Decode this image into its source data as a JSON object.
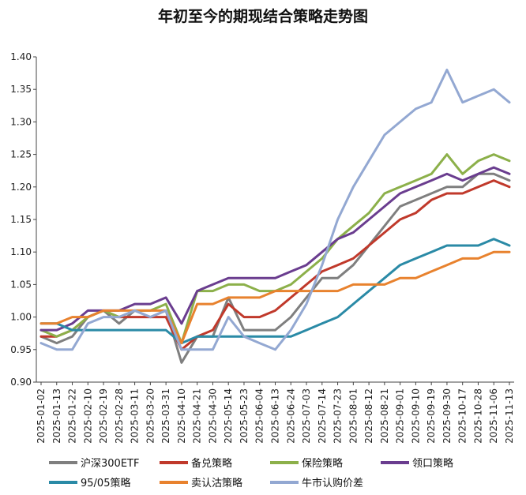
{
  "chart_data": {
    "type": "line",
    "title": "年初至今的期现结合策略走势图",
    "xlabel": "",
    "ylabel": "",
    "ylim": [
      0.9,
      1.4
    ],
    "yticks": [
      "0.90",
      "0.95",
      "1.00",
      "1.05",
      "1.10",
      "1.15",
      "1.20",
      "1.25",
      "1.30",
      "1.35",
      "1.40"
    ],
    "x": [
      "2025-01-02",
      "2025-01-13",
      "2025-01-22",
      "2025-02-10",
      "2025-02-19",
      "2025-02-28",
      "2025-03-11",
      "2025-03-20",
      "2025-03-31",
      "2025-04-10",
      "2025-04-21",
      "2025-04-30",
      "2025-05-14",
      "2025-05-23",
      "2025-06-04",
      "2025-06-13",
      "2025-06-24",
      "2025-07-03",
      "2025-07-14",
      "2025-07-23",
      "2025-08-01",
      "2025-08-12",
      "2025-08-21",
      "2025-09-01",
      "2025-09-10",
      "2025-09-19",
      "2025-09-30",
      "2025-10-17",
      "2025-10-28",
      "2025-11-06",
      "2025-11-13"
    ],
    "legend_position": "bottom",
    "series": [
      {
        "name": "沪深300ETF",
        "color": "#7f7f7f",
        "values": [
          0.97,
          0.96,
          0.97,
          1.0,
          1.01,
          0.99,
          1.01,
          1.0,
          1.01,
          0.93,
          0.97,
          0.97,
          1.03,
          0.98,
          0.98,
          0.98,
          1.0,
          1.03,
          1.06,
          1.06,
          1.08,
          1.11,
          1.14,
          1.17,
          1.18,
          1.19,
          1.2,
          1.2,
          1.22,
          1.22,
          1.21
        ]
      },
      {
        "name": "备兑策略",
        "color": "#c0392b",
        "values": [
          0.97,
          0.97,
          0.98,
          1.0,
          1.01,
          1.0,
          1.0,
          1.0,
          1.0,
          0.95,
          0.97,
          0.98,
          1.02,
          1.0,
          1.0,
          1.01,
          1.03,
          1.05,
          1.07,
          1.08,
          1.09,
          1.11,
          1.13,
          1.15,
          1.16,
          1.18,
          1.19,
          1.19,
          1.2,
          1.21,
          1.2
        ]
      },
      {
        "name": "保险策略",
        "color": "#8cb04a",
        "values": [
          0.98,
          0.97,
          0.98,
          1.0,
          1.01,
          1.0,
          1.01,
          1.01,
          1.02,
          0.96,
          1.04,
          1.04,
          1.05,
          1.05,
          1.04,
          1.04,
          1.05,
          1.07,
          1.09,
          1.12,
          1.14,
          1.16,
          1.19,
          1.2,
          1.21,
          1.22,
          1.25,
          1.22,
          1.24,
          1.25,
          1.24
        ]
      },
      {
        "name": "领口策略",
        "color": "#6a3d8f",
        "values": [
          0.98,
          0.98,
          0.99,
          1.01,
          1.01,
          1.01,
          1.02,
          1.02,
          1.03,
          0.99,
          1.04,
          1.05,
          1.06,
          1.06,
          1.06,
          1.06,
          1.07,
          1.08,
          1.1,
          1.12,
          1.13,
          1.15,
          1.17,
          1.19,
          1.2,
          1.21,
          1.22,
          1.21,
          1.22,
          1.23,
          1.22
        ]
      },
      {
        "name": "95/05策略",
        "color": "#2a8aa6",
        "values": [
          0.99,
          0.99,
          0.98,
          0.98,
          0.98,
          0.98,
          0.98,
          0.98,
          0.98,
          0.96,
          0.97,
          0.97,
          0.97,
          0.97,
          0.97,
          0.97,
          0.97,
          0.98,
          0.99,
          1.0,
          1.02,
          1.04,
          1.06,
          1.08,
          1.09,
          1.1,
          1.11,
          1.11,
          1.11,
          1.12,
          1.11
        ]
      },
      {
        "name": "卖认沽策略",
        "color": "#e8822e",
        "values": [
          0.99,
          0.99,
          1.0,
          1.0,
          1.01,
          1.01,
          1.01,
          1.01,
          1.01,
          0.96,
          1.02,
          1.02,
          1.03,
          1.03,
          1.03,
          1.04,
          1.04,
          1.04,
          1.04,
          1.04,
          1.05,
          1.05,
          1.05,
          1.06,
          1.06,
          1.07,
          1.08,
          1.09,
          1.09,
          1.1,
          1.1
        ]
      },
      {
        "name": "牛市认购价差",
        "color": "#93a8d2",
        "values": [
          0.96,
          0.95,
          0.95,
          0.99,
          1.0,
          1.0,
          1.01,
          1.0,
          1.01,
          0.95,
          0.95,
          0.95,
          1.0,
          0.97,
          0.96,
          0.95,
          0.98,
          1.02,
          1.08,
          1.15,
          1.2,
          1.24,
          1.28,
          1.3,
          1.32,
          1.33,
          1.38,
          1.33,
          1.34,
          1.35,
          1.33
        ]
      }
    ]
  }
}
